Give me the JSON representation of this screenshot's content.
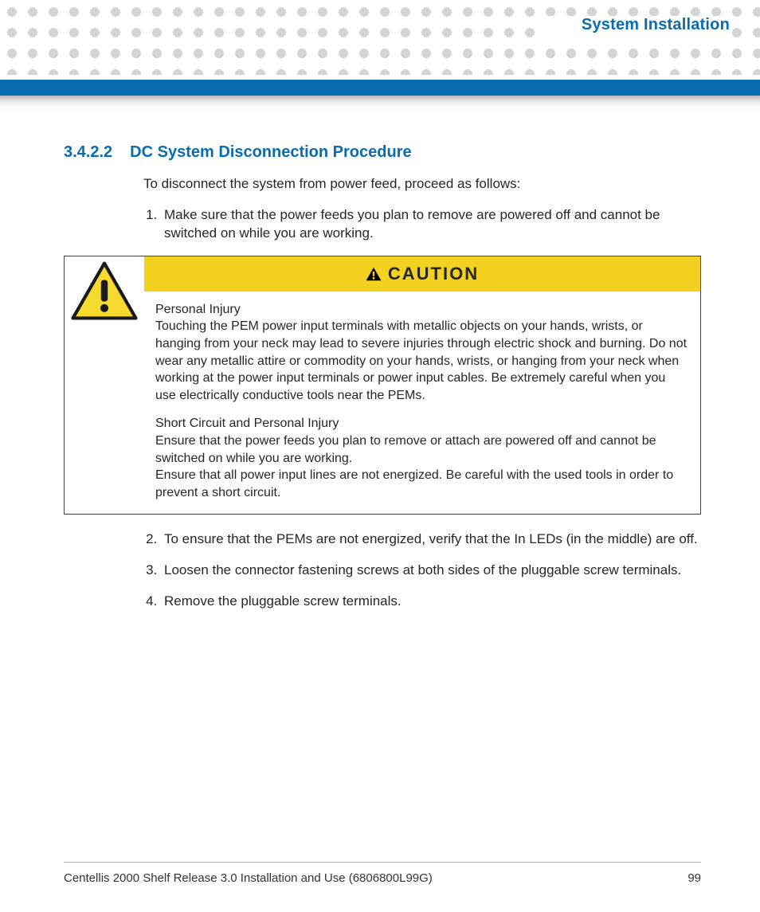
{
  "colors": {
    "accent_blue": "#076cb0",
    "caution_yellow": "#f2d21f",
    "caution_icon_stroke": "#1a1a1a",
    "caution_icon_fill": "#f6da2d",
    "dot_gray": "#d4d4d4",
    "text_body": "#262626"
  },
  "header": {
    "chapter_title": "System Installation"
  },
  "section": {
    "number": "3.4.2.2",
    "title": "DC System Disconnection Procedure",
    "intro": "To disconnect the system from power feed, proceed as follows:",
    "step1": "Make sure that the power feeds you plan to remove are powered off and cannot be switched on while you are working.",
    "step2": "To ensure that the PEMs are not energized, verify that the In LEDs (in the middle) are off.",
    "step3": "Loosen the connector fastening screws at both sides of the pluggable screw terminals.",
    "step4": "Remove the pluggable screw terminals."
  },
  "caution": {
    "label": "CAUTION",
    "para1_title": "Personal Injury",
    "para1_body": "Touching the PEM power input terminals with metallic objects on your hands, wrists, or hanging from your neck may lead to severe injuries through electric shock and burning. Do not wear any metallic attire or commodity on your hands, wrists, or hanging from your neck when working at the power input terminals or power input cables. Be extremely careful when you use electrically conductive tools near the PEMs.",
    "para2_title": "Short Circuit and Personal Injury",
    "para2_body": "Ensure that the power feeds you plan to remove or attach are powered off and cannot be switched on while you are working.\nEnsure that all power input lines are not energized. Be careful with the used tools in order to prevent a short circuit."
  },
  "footer": {
    "doc_title": "Centellis 2000 Shelf Release 3.0 Installation and Use (6806800L99G)",
    "page_number": "99"
  }
}
